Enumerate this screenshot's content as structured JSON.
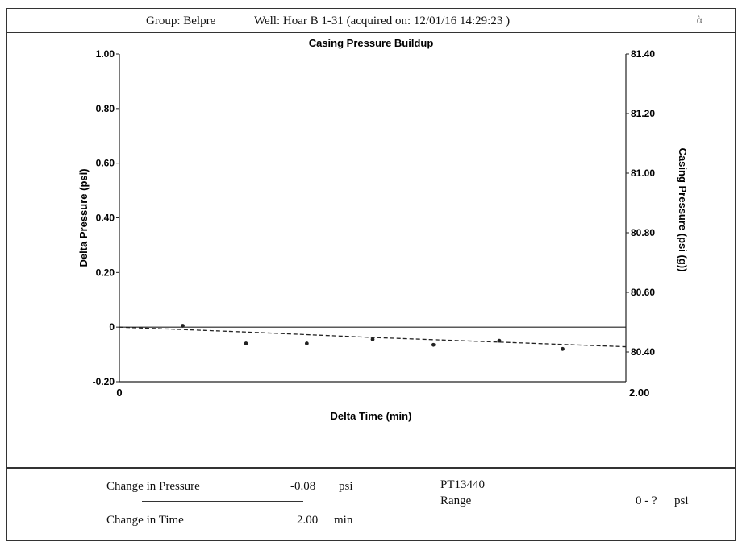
{
  "header": {
    "group": "Group: Belpre",
    "well": "Well: Hoar B 1-31 (acquired on: 12/01/16 14:29:23 )",
    "corner_glyph": "ὰ"
  },
  "chart_data": {
    "type": "line",
    "title": "Casing Pressure Buildup",
    "xlabel": "Delta Time (min)",
    "ylabel": "Delta Pressure (psi)",
    "y2label": "Casing Pressure (psi (g))",
    "xlim": [
      0,
      2.0
    ],
    "ylim": [
      -0.2,
      1.0
    ],
    "y2lim": [
      80.3,
      81.4
    ],
    "x_ticks": [
      "0",
      "2.00"
    ],
    "y_ticks": [
      "1.00",
      "0.80",
      "0.60",
      "0.40",
      "0.20",
      "0",
      "-0.20"
    ],
    "y2_ticks": [
      "81.40",
      "81.20",
      "81.00",
      "80.80",
      "80.60",
      "80.40"
    ],
    "grid": false,
    "series": [
      {
        "kind": "points",
        "x": [
          0.25,
          0.5,
          0.74,
          1.0,
          1.24,
          1.5,
          1.75
        ],
        "y": [
          0.005,
          -0.06,
          -0.06,
          -0.045,
          -0.065,
          -0.05,
          -0.08
        ]
      },
      {
        "kind": "trend",
        "x": [
          0,
          0.5,
          1.0,
          1.5,
          2.0
        ],
        "y": [
          0,
          -0.018,
          -0.038,
          -0.055,
          -0.072
        ]
      }
    ]
  },
  "footer": {
    "change_pressure_label": "Change in Pressure",
    "change_pressure_value": "-0.08",
    "change_pressure_unit": "psi",
    "change_time_label": "Change in Time",
    "change_time_value": "2.00",
    "change_time_unit": "min",
    "gauge_id": "PT13440",
    "range_label": "Range",
    "range_value": "0 - ?",
    "range_unit": "psi"
  }
}
